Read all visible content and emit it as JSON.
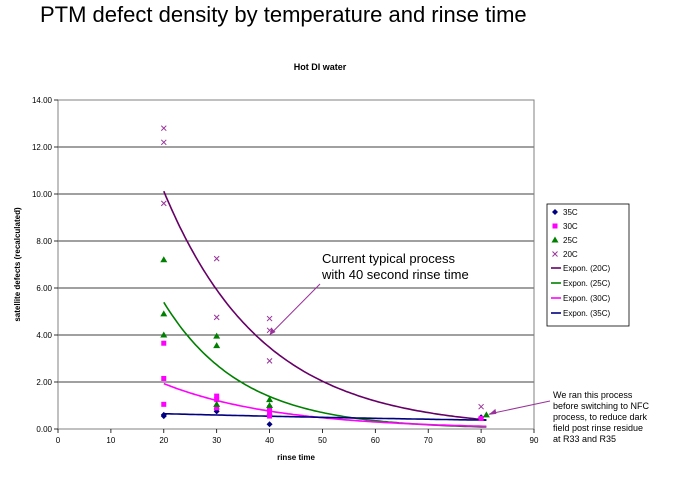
{
  "slide_title": "PTM defect density by temperature and rinse time",
  "chart_data": {
    "type": "scatter",
    "title": "Hot DI water",
    "xlabel": "rinse time",
    "ylabel": "satellite defects (recalculated)",
    "xlim": [
      0,
      90
    ],
    "ylim": [
      0,
      14
    ],
    "x_ticks": [
      "0",
      "10",
      "20",
      "30",
      "40",
      "50",
      "60",
      "70",
      "80",
      "90"
    ],
    "y_ticks": [
      "0.00",
      "2.00",
      "4.00",
      "6.00",
      "8.00",
      "10.00",
      "12.00",
      "14.00"
    ],
    "grid": "horizontal",
    "legend_position": "right",
    "series": [
      {
        "name": "35C",
        "marker": "diamond",
        "color": "#000080",
        "points": [
          [
            20,
            0.55
          ],
          [
            20,
            0.6
          ],
          [
            30,
            0.75
          ],
          [
            30,
            0.85
          ],
          [
            40,
            0.2
          ],
          [
            40,
            0.6
          ],
          [
            80,
            0.5
          ]
        ]
      },
      {
        "name": "30C",
        "marker": "square",
        "color": "#ff00ff",
        "points": [
          [
            20,
            3.65
          ],
          [
            20,
            2.15
          ],
          [
            20,
            1.05
          ],
          [
            30,
            1.4
          ],
          [
            30,
            1.25
          ],
          [
            30,
            0.9
          ],
          [
            40,
            0.9
          ],
          [
            40,
            0.75
          ],
          [
            40,
            0.55
          ],
          [
            80,
            0.45
          ]
        ]
      },
      {
        "name": "25C",
        "marker": "triangle",
        "color": "#008000",
        "points": [
          [
            20,
            7.2
          ],
          [
            20,
            4.9
          ],
          [
            20,
            4.0
          ],
          [
            30,
            3.95
          ],
          [
            30,
            3.55
          ],
          [
            30,
            1.05
          ],
          [
            40,
            1.25
          ],
          [
            40,
            1.0
          ],
          [
            81,
            0.6
          ]
        ]
      },
      {
        "name": "20C",
        "marker": "x",
        "color": "#993399",
        "points": [
          [
            20,
            12.8
          ],
          [
            20,
            12.2
          ],
          [
            20,
            9.6
          ],
          [
            30,
            7.25
          ],
          [
            30,
            4.75
          ],
          [
            40,
            4.7
          ],
          [
            40,
            4.2
          ],
          [
            40,
            2.9
          ],
          [
            80,
            0.95
          ]
        ]
      }
    ],
    "trendlines": [
      {
        "name": "Expon. (20C)",
        "color": "#660066",
        "a": 29.5,
        "b": -0.0535
      },
      {
        "name": "Expon. (25C)",
        "color": "#008000",
        "a": 21.0,
        "b": -0.068
      },
      {
        "name": "Expon. (30C)",
        "color": "#ff00ff",
        "a": 4.9,
        "b": -0.0465
      },
      {
        "name": "Expon. (35C)",
        "color": "#000080",
        "a": 0.78,
        "b": -0.009
      }
    ],
    "annotations": [
      {
        "lines": [
          "Current typical process",
          "with 40 second rinse time"
        ],
        "point": [
          40,
          4.0
        ]
      },
      {
        "lines": [
          "We ran this process",
          "before switching to NFC",
          "process, to reduce dark",
          "field post rinse residue",
          "at R33 and R35"
        ],
        "point": [
          81,
          0.6
        ]
      }
    ]
  }
}
